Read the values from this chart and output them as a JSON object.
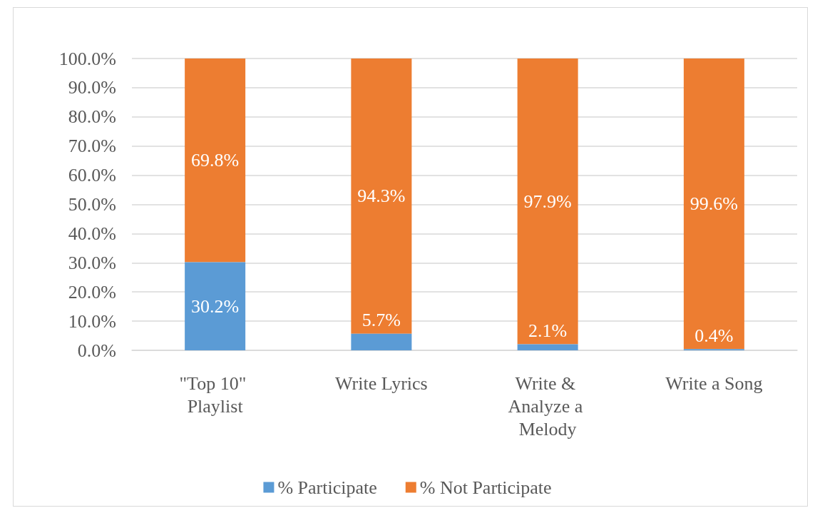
{
  "chart_data": {
    "type": "bar",
    "categories": [
      "\"Top 10\" Playlist",
      "Write Lyrics",
      "Write & Analyze a Melody",
      "Write a Song"
    ],
    "series": [
      {
        "name": "% Participate",
        "color": "#5b9bd5",
        "values": [
          30.2,
          5.7,
          2.1,
          0.4
        ],
        "value_labels": [
          "30.2%",
          "5.7%",
          "2.1%",
          "0.4%"
        ]
      },
      {
        "name": "% Not Participate",
        "color": "#ed7d31",
        "values": [
          69.8,
          94.3,
          97.9,
          99.6
        ],
        "value_labels": [
          "69.8%",
          "94.3%",
          "97.9%",
          "99.6%"
        ]
      }
    ],
    "stacked": true,
    "ylim": [
      0,
      100
    ],
    "yticks": [
      {
        "value": 0,
        "label": "0.0%"
      },
      {
        "value": 10,
        "label": "10.0%"
      },
      {
        "value": 20,
        "label": "20.0%"
      },
      {
        "value": 30,
        "label": "30.0%"
      },
      {
        "value": 40,
        "label": "40.0%"
      },
      {
        "value": 50,
        "label": "50.0%"
      },
      {
        "value": 60,
        "label": "60.0%"
      },
      {
        "value": 70,
        "label": "70.0%"
      },
      {
        "value": 80,
        "label": "80.0%"
      },
      {
        "value": 90,
        "label": "90.0%"
      },
      {
        "value": 100,
        "label": "100.0%"
      }
    ],
    "grid": true,
    "legend": "bottom"
  }
}
